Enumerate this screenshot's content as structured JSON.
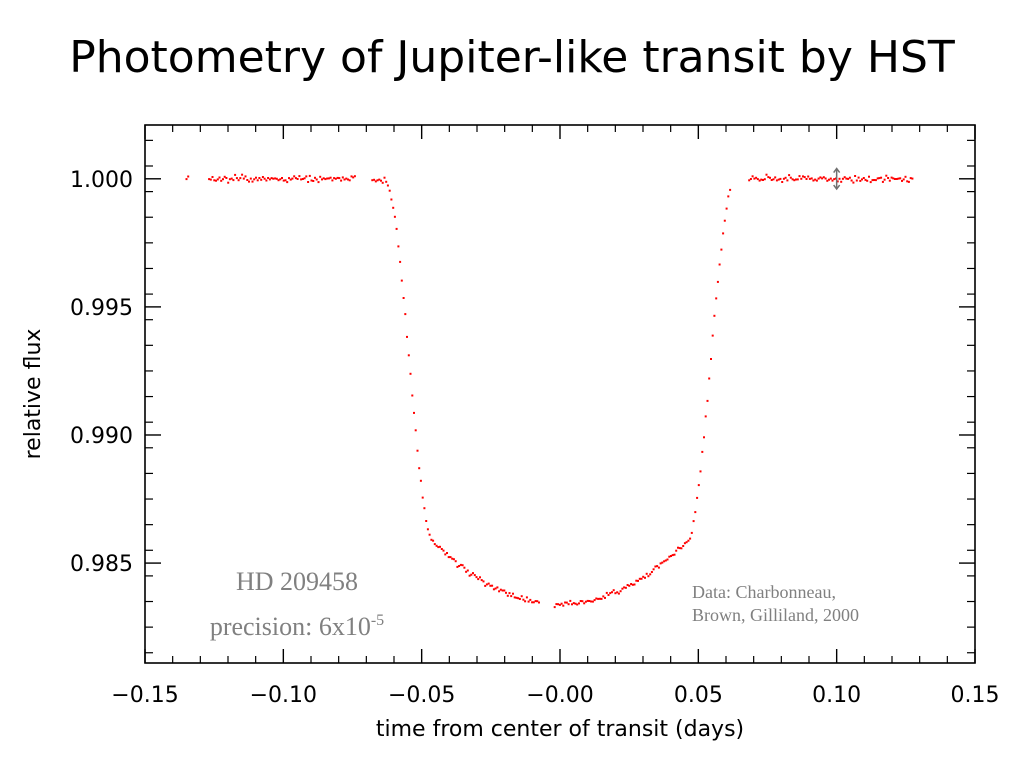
{
  "slide": {
    "title": "Photometry of Jupiter-like transit by HST"
  },
  "chart_data": {
    "type": "scatter",
    "xlabel": "time from center of transit (days)",
    "ylabel": "relative flux",
    "xlim": [
      -0.15,
      0.15
    ],
    "ylim": [
      0.9811,
      1.0021
    ],
    "xticks": [
      -0.15,
      -0.1,
      -0.05,
      0.0,
      0.05,
      0.1,
      0.15
    ],
    "xtick_labels": [
      "−0.15",
      "−0.10",
      "−0.05",
      "−0.00",
      "0.05",
      "0.10",
      "0.15"
    ],
    "yticks": [
      0.985,
      0.99,
      0.995,
      1.0
    ],
    "ytick_labels": [
      "0.985",
      "0.990",
      "0.995",
      "1.000"
    ],
    "grid": false,
    "series": [
      {
        "color": "#ff0000",
        "marker": "dot",
        "point_count": 420,
        "profile": {
          "baseline": 1.0,
          "depth_center": 0.9834,
          "ingress_start": -0.0635,
          "ingress_end": -0.0455,
          "egress_start": 0.0455,
          "egress_end": 0.0635,
          "gaps": [
            [
              -0.127,
              -0.134
            ],
            [
              -0.074,
              -0.068
            ],
            [
              -0.007,
              -0.002
            ],
            [
              0.062,
              0.068
            ],
            [
              0.128,
              0.2
            ]
          ],
          "data_start": -0.135,
          "data_end": 0.128,
          "scatter": 0.00012
        }
      }
    ],
    "error_bar": {
      "x": 0.1,
      "y": 1.0,
      "half_height": 0.0004,
      "color": "#707070"
    },
    "annotations": [
      {
        "id": "star",
        "text": "HD 209458",
        "color": "#808080"
      },
      {
        "id": "precision",
        "text": "precision: 6x10",
        "superscript": "-5",
        "color": "#808080"
      },
      {
        "id": "credit_line1",
        "text": "Data: Charbonneau,",
        "color": "#808080"
      },
      {
        "id": "credit_line2",
        "text": "Brown, Gilliland, 2000",
        "color": "#808080"
      }
    ]
  }
}
